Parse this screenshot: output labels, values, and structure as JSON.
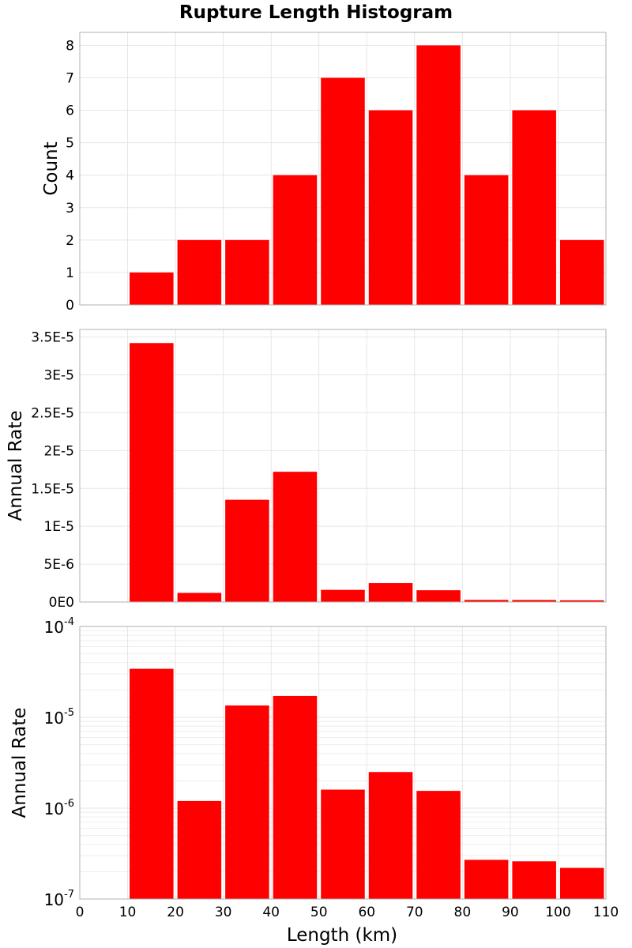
{
  "chart_data": {
    "type": "bar",
    "title": "Rupture Length Histogram",
    "xlabel": "Length (km)",
    "xlim": [
      0,
      110
    ],
    "xticks": [
      "0",
      "10",
      "20",
      "30",
      "40",
      "50",
      "60",
      "70",
      "80",
      "90",
      "100",
      "110"
    ],
    "bin_starts": [
      10,
      20,
      30,
      40,
      50,
      60,
      70,
      80,
      90,
      100
    ],
    "bin_width": 10,
    "bar_color": "#ff0000",
    "grid": true,
    "panels": [
      {
        "ylabel": "Count",
        "yscale": "linear",
        "ylim": [
          0,
          8.4
        ],
        "ytick_values": [
          0,
          1,
          2,
          3,
          4,
          5,
          6,
          7,
          8
        ],
        "yticks": [
          "0",
          "1",
          "2",
          "3",
          "4",
          "5",
          "6",
          "7",
          "8"
        ],
        "values": [
          1,
          2,
          2,
          4,
          7,
          6,
          8,
          4,
          6,
          2
        ]
      },
      {
        "ylabel": "Annual Rate",
        "yscale": "linear",
        "ylim": [
          0,
          3.6e-05
        ],
        "ytick_values": [
          0,
          5e-06,
          1e-05,
          1.5e-05,
          2e-05,
          2.5e-05,
          3e-05,
          3.5e-05
        ],
        "yticks": [
          "0E0",
          "5E-6",
          "1E-5",
          "1.5E-5",
          "2E-5",
          "2.5E-5",
          "3E-5",
          "3.5E-5"
        ],
        "values": [
          3.42e-05,
          1.2e-06,
          1.35e-05,
          1.72e-05,
          1.6e-06,
          2.5e-06,
          1.55e-06,
          2.7e-07,
          2.6e-07,
          2.2e-07
        ]
      },
      {
        "ylabel": "Annual Rate",
        "yscale": "log",
        "ylim": [
          1e-07,
          0.0001
        ],
        "ytick_values": [
          1e-07,
          1e-06,
          1e-05,
          0.0001
        ],
        "yticks": [
          {
            "base": "10",
            "exp": "-7"
          },
          {
            "base": "10",
            "exp": "-6"
          },
          {
            "base": "10",
            "exp": "-5"
          },
          {
            "base": "10",
            "exp": "-4"
          }
        ],
        "values": [
          3.42e-05,
          1.2e-06,
          1.35e-05,
          1.72e-05,
          1.6e-06,
          2.5e-06,
          1.55e-06,
          2.7e-07,
          2.6e-07,
          2.2e-07
        ]
      }
    ]
  }
}
